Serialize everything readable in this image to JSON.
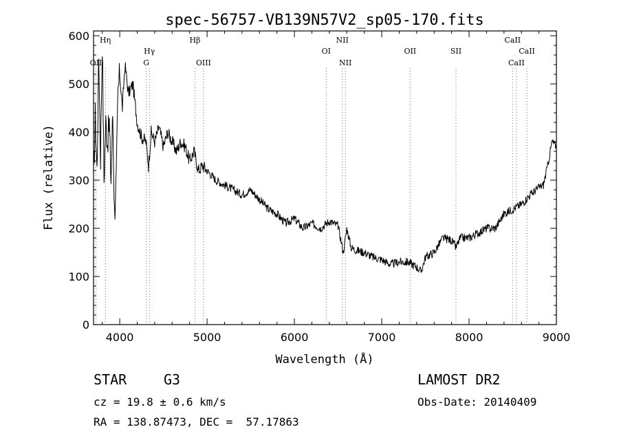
{
  "chart_data": {
    "type": "line",
    "title": "spec-56757-VB139N57V2_sp05-170.fits",
    "xlabel": "Wavelength (Å)",
    "ylabel": "Flux (relative)",
    "xlim": [
      3700,
      9000
    ],
    "ylim": [
      0,
      610
    ],
    "xticks": [
      4000,
      5000,
      6000,
      7000,
      8000,
      9000
    ],
    "yticks": [
      0,
      100,
      200,
      300,
      400,
      500,
      600
    ],
    "grid": false,
    "series": [
      {
        "x": [
          3700,
          3720,
          3740,
          3760,
          3780,
          3800,
          3820,
          3840,
          3860,
          3880,
          3900,
          3920,
          3940,
          3960,
          3980,
          4000,
          4030,
          4060,
          4100,
          4150,
          4200,
          4250,
          4300,
          4330,
          4360,
          4400,
          4450,
          4500,
          4550,
          4600,
          4650,
          4700,
          4750,
          4800,
          4850,
          4900,
          4950,
          5000,
          5100,
          5200,
          5300,
          5400,
          5500,
          5600,
          5700,
          5800,
          5900,
          6000,
          6100,
          6200,
          6300,
          6400,
          6500,
          6560,
          6600,
          6650,
          6700,
          6800,
          6900,
          7000,
          7100,
          7200,
          7300,
          7400,
          7450,
          7500,
          7600,
          7700,
          7800,
          7850,
          7900,
          8000,
          8100,
          8200,
          8300,
          8400,
          8500,
          8600,
          8700,
          8800,
          8850,
          8900,
          8950,
          9000
        ],
        "y": [
          300,
          430,
          320,
          560,
          350,
          590,
          300,
          420,
          380,
          420,
          300,
          440,
          230,
          300,
          480,
          520,
          450,
          540,
          480,
          500,
          420,
          390,
          380,
          330,
          400,
          380,
          410,
          370,
          400,
          380,
          360,
          380,
          370,
          340,
          360,
          320,
          330,
          320,
          300,
          290,
          280,
          270,
          280,
          260,
          240,
          230,
          210,
          220,
          200,
          210,
          200,
          215,
          205,
          150,
          200,
          160,
          155,
          150,
          140,
          135,
          125,
          130,
          130,
          120,
          110,
          140,
          150,
          180,
          175,
          160,
          180,
          180,
          190,
          200,
          200,
          230,
          240,
          250,
          270,
          285,
          290,
          330,
          380,
          370
        ]
      }
    ],
    "line_markers": [
      {
        "label": "OII",
        "x": 3727,
        "level": 3
      },
      {
        "label": "Hη",
        "x": 3835,
        "level": 1
      },
      {
        "label": "Hγ",
        "x": 4340,
        "level": 2
      },
      {
        "label": "G",
        "x": 4304,
        "level": 3
      },
      {
        "label": "Hβ",
        "x": 4861,
        "level": 1
      },
      {
        "label": "OIII",
        "x": 4959,
        "level": 3
      },
      {
        "label": "OI",
        "x": 6364,
        "level": 2
      },
      {
        "label": "NII",
        "x": 6548,
        "level": 1
      },
      {
        "label": "NII",
        "x": 6584,
        "level": 3
      },
      {
        "label": "OII",
        "x": 7325,
        "level": 2
      },
      {
        "label": "SII",
        "x": 7850,
        "level": 2
      },
      {
        "label": "CaII",
        "x": 8498,
        "level": 1
      },
      {
        "label": "CaII",
        "x": 8542,
        "level": 3
      },
      {
        "label": "CaII",
        "x": 8662,
        "level": 2
      }
    ]
  },
  "info": {
    "class_label": "STAR",
    "subclass": "G3",
    "redshift": "cz = 19.8 ± 0.6 km/s",
    "coords": "RA = 138.87473, DEC =  57.17863",
    "survey": "LAMOST DR2",
    "obs_date": "Obs-Date: 20140409"
  },
  "colors": {
    "line": "#000000",
    "marker": "#cc4444"
  }
}
